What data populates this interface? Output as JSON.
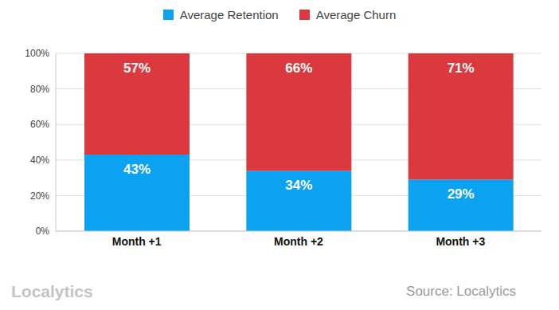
{
  "chart_data": {
    "type": "bar",
    "categories": [
      "Month +1",
      "Month +2",
      "Month +3"
    ],
    "series": [
      {
        "name": "Average Retention",
        "color": "#0ba2f2",
        "values": [
          43,
          34,
          29
        ],
        "value_labels": [
          "43%",
          "34%",
          "29%"
        ]
      },
      {
        "name": "Average Churn",
        "color": "#dc393e",
        "values": [
          57,
          66,
          71
        ],
        "value_labels": [
          "57%",
          "66%",
          "71%"
        ]
      }
    ],
    "ylim": [
      0,
      100
    ],
    "yticks": [
      {
        "value": 0,
        "label": "0%"
      },
      {
        "value": 20,
        "label": "20%"
      },
      {
        "value": 40,
        "label": "40%"
      },
      {
        "value": 60,
        "label": "60%"
      },
      {
        "value": 80,
        "label": "80%"
      },
      {
        "value": 100,
        "label": "100%"
      }
    ],
    "stacked": true,
    "grid": true,
    "legend": "top",
    "data_labels": true,
    "annotations": [
      "Localytics",
      "Source: Localytics"
    ]
  }
}
